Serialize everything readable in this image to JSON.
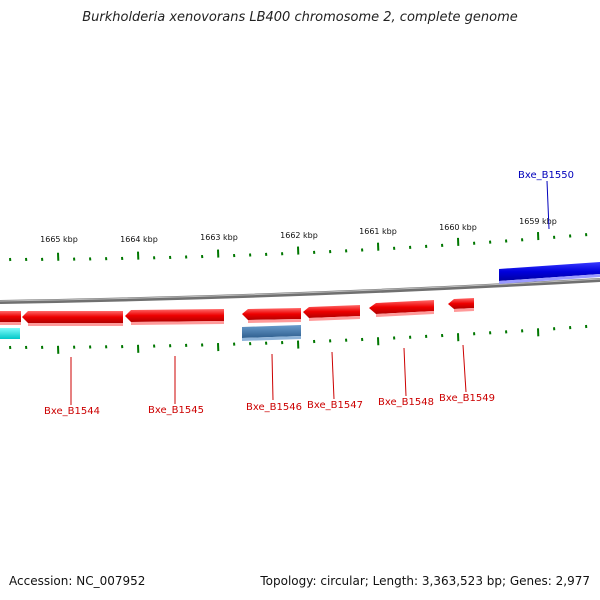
{
  "title": "Burkholderia xenovorans LB400 chromosome 2, complete genome",
  "footer": {
    "accession": "Accession: NC_007952",
    "summary": "Topology: circular; Length: 3,363,523 bp; Genes: 2,977"
  },
  "colors": {
    "forward_gene": "#0000dd",
    "reverse_gene": "#ee0000",
    "rna_gene": "#3a6fa0",
    "partial_gene": "#00e5e5",
    "backbone": "#888888",
    "tick": "#007700",
    "reverse_label": "#cc0000",
    "forward_label": "#0000bb"
  },
  "scale_labels": [
    "1665 kbp",
    "1664 kbp",
    "1663 kbp",
    "1662 kbp",
    "1661 kbp",
    "1660 kbp",
    "1659 kbp"
  ],
  "gene_labels": [
    {
      "name": "Bxe_B1544",
      "strand": "reverse"
    },
    {
      "name": "Bxe_B1545",
      "strand": "reverse"
    },
    {
      "name": "Bxe_B1546",
      "strand": "reverse"
    },
    {
      "name": "Bxe_B1547",
      "strand": "reverse"
    },
    {
      "name": "Bxe_B1548",
      "strand": "reverse"
    },
    {
      "name": "Bxe_B1549",
      "strand": "reverse"
    },
    {
      "name": "Bxe_B1550",
      "strand": "forward"
    }
  ]
}
